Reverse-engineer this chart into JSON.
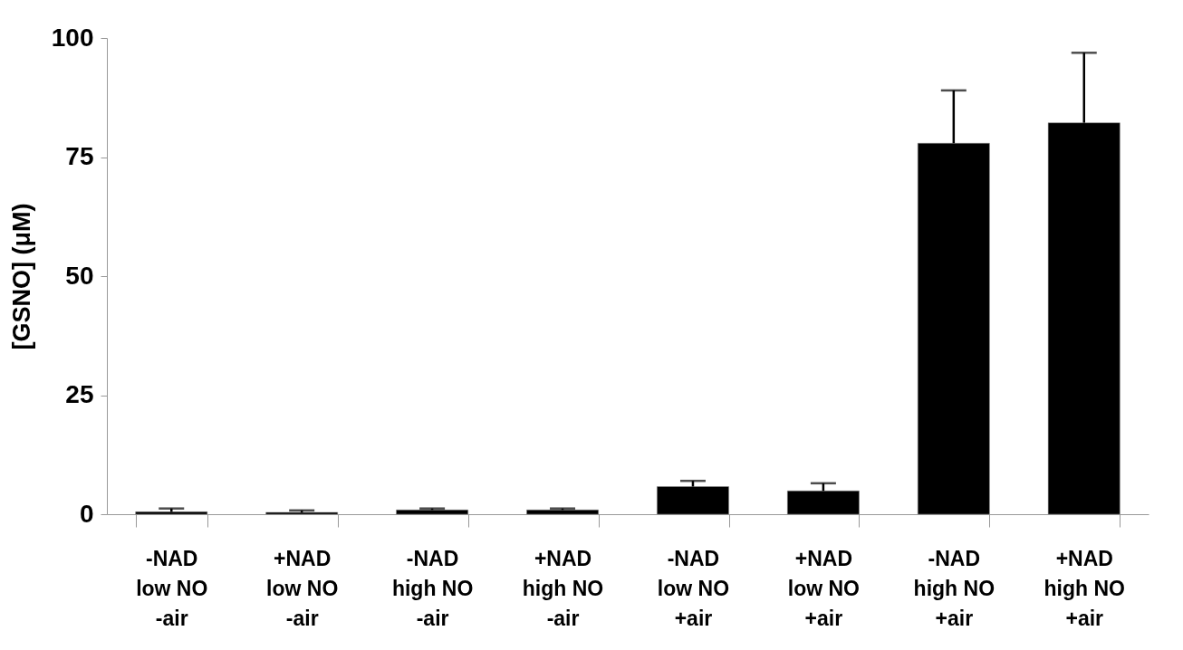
{
  "chart_data": {
    "type": "bar",
    "ylabel": "[GSNO]  (μM)",
    "categories": [
      "-NAD\nlow NO\n-air",
      "+NAD\nlow NO\n-air",
      "-NAD\nhigh NO\n-air",
      "+NAD\nhigh NO\n-air",
      "-NAD\nlow NO\n+air",
      "+NAD\nlow NO\n+air",
      "-NAD\nhigh NO\n+air",
      "+NAD\nhigh NO\n+air"
    ],
    "values": [
      0.5,
      0.4,
      0.9,
      0.9,
      5.8,
      4.9,
      77.9,
      82.2
    ],
    "errors": [
      [
        0.5,
        1.2
      ],
      [
        0.4,
        0.8
      ],
      [
        0.9,
        1.2
      ],
      [
        0.9,
        1.2
      ],
      [
        5.8,
        7.0
      ],
      [
        4.9,
        6.5
      ],
      [
        77.9,
        89.0
      ],
      [
        82.2,
        96.9
      ]
    ],
    "color": "#000000",
    "ylim": [
      0,
      100
    ],
    "yticks": [
      0,
      25,
      50,
      75,
      100
    ],
    "grid": false
  }
}
